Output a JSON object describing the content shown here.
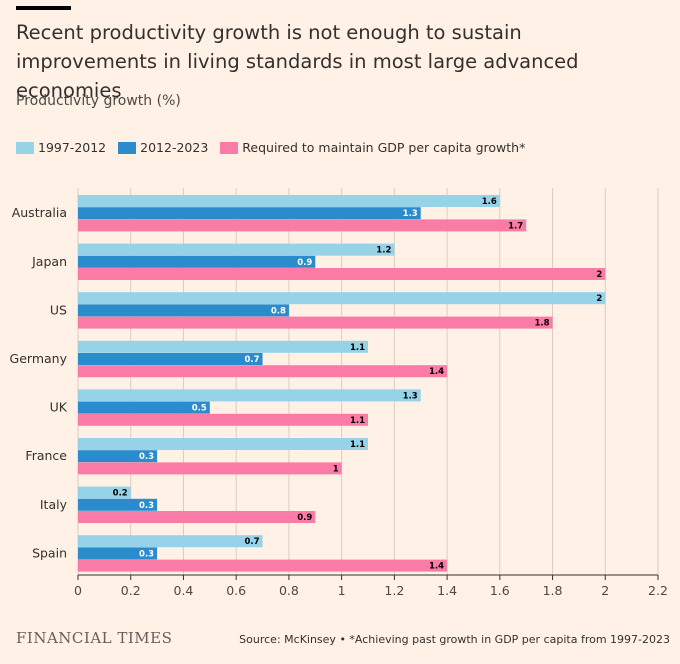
{
  "header": {
    "title": "Recent productivity growth is not enough to sustain improvements in living standards in most large advanced economies",
    "subtitle": "Productivity growth (%)"
  },
  "legend": [
    {
      "label": "1997-2012",
      "color": "#96d3e8"
    },
    {
      "label": "2012-2023",
      "color": "#2b8ccd"
    },
    {
      "label": "Required to maintain GDP per capita growth*",
      "color": "#fb7ba7"
    }
  ],
  "chart_data": {
    "type": "bar",
    "orientation": "horizontal",
    "title": "Recent productivity growth is not enough to sustain improvements in living standards in most large advanced economies",
    "xlabel": "",
    "ylabel": "Productivity growth (%)",
    "xlim": [
      0,
      2.2
    ],
    "xticks": [
      0,
      0.2,
      0.4,
      0.6,
      0.8,
      1,
      1.2,
      1.4,
      1.6,
      1.8,
      2,
      2.2
    ],
    "categories": [
      "Australia",
      "Japan",
      "US",
      "Germany",
      "UK",
      "France",
      "Italy",
      "Spain"
    ],
    "series": [
      {
        "name": "1997-2012",
        "color": "#96d3e8",
        "label_color": "#000000",
        "values": [
          1.6,
          1.2,
          2,
          1.1,
          1.3,
          1.1,
          0.2,
          0.7
        ]
      },
      {
        "name": "2012-2023",
        "color": "#2b8ccd",
        "label_color": "#ffffff",
        "values": [
          1.3,
          0.9,
          0.8,
          0.7,
          0.5,
          0.3,
          0.3,
          0.3
        ]
      },
      {
        "name": "Required to maintain GDP per capita growth*",
        "color": "#fb7ba7",
        "label_color": "#000000",
        "values": [
          1.7,
          2,
          1.8,
          1.4,
          1.1,
          1,
          0.9,
          1.4
        ]
      }
    ],
    "grid": true
  },
  "footer": {
    "brand": "FINANCIAL TIMES",
    "source": "Source: McKinsey • *Achieving past growth in GDP per capita from 1997-2023"
  }
}
